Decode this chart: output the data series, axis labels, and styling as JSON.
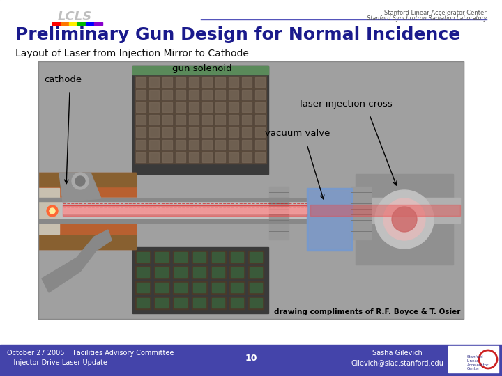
{
  "title": "Preliminary Gun Design for Normal Incidence",
  "subtitle": "Layout of Laser from Injection Mirror to Cathode",
  "title_color": "#1a1a8c",
  "title_fontsize": 18,
  "subtitle_fontsize": 10,
  "bg_color": "#ffffff",
  "footer_bg": "#4444aa",
  "footer_text_color": "#ffffff",
  "footer_left_line1": "October 27 2005    Facilities Advisory Committee",
  "footer_left_line2": "   Injector Drive Laser Update",
  "footer_page": "10",
  "footer_right_line1": "Sasha Gilevich",
  "footer_right_line2": "Gilevich@slac.stanford.edu",
  "header_right_line1": "Stanford Linear Accelerator Center",
  "header_right_line2": "Stanford Synchrotron Radiation Laboratory",
  "image_bg": "#a8a8a8",
  "drawing_credit": "drawing compliments of R.F. Boyce & T. Osier",
  "label_cathode": "cathode",
  "label_gun_solenoid": "gun solenoid",
  "label_laser_injection": "laser injection cross",
  "label_vacuum_valve": "vacuum valve",
  "slide_bg": "#c8cce0"
}
